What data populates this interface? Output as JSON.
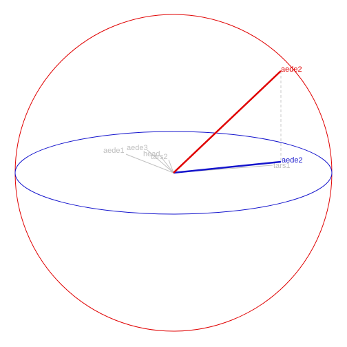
{
  "diagram": {
    "colors": {
      "sphere": "#e00000",
      "equator": "#1010cc",
      "primary": "#e00000",
      "projection": "#1414cc",
      "background_vectors": "#c0c0c0",
      "drop_line": "#c8c8c8"
    },
    "primary_vector": {
      "label": "aede2"
    },
    "projected_vector": {
      "label": "aede2"
    },
    "background_vectors": [
      {
        "label": "aede1"
      },
      {
        "label": "aede3"
      },
      {
        "label": "head"
      },
      {
        "label": "tars2"
      },
      {
        "label": "tars1"
      }
    ]
  }
}
